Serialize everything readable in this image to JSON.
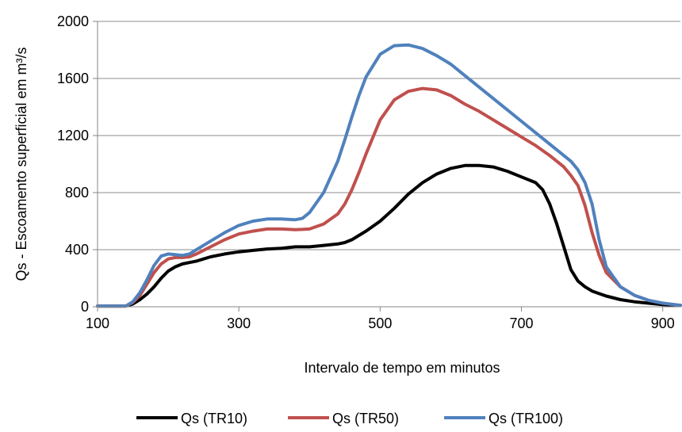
{
  "chart_data": {
    "type": "line",
    "xlabel": "Intervalo de tempo em minutos",
    "ylabel": "Qs - Escoamento superficial em m³/s",
    "xlim": [
      100,
      925
    ],
    "ylim": [
      0,
      2000
    ],
    "x_ticks": [
      100,
      300,
      500,
      700,
      900
    ],
    "y_ticks": [
      0,
      400,
      800,
      1200,
      1600,
      2000
    ],
    "x_tick_labels": [
      "100",
      "300",
      "500",
      "700",
      "900"
    ],
    "y_tick_labels": [
      "0",
      "400",
      "800",
      "1200",
      "1600",
      "2000"
    ],
    "grid": "horizontal",
    "legend": "bottom",
    "series": [
      {
        "name": "Qs (TR10)",
        "color": "#000000",
        "x": [
          100,
          140,
          150,
          160,
          170,
          180,
          190,
          200,
          210,
          220,
          230,
          240,
          260,
          280,
          300,
          320,
          340,
          360,
          380,
          400,
          420,
          440,
          450,
          460,
          470,
          480,
          500,
          520,
          540,
          560,
          580,
          600,
          620,
          640,
          660,
          680,
          700,
          720,
          730,
          740,
          750,
          760,
          770,
          780,
          790,
          800,
          820,
          840,
          860,
          880,
          900,
          925
        ],
        "y": [
          5,
          5,
          20,
          50,
          90,
          140,
          200,
          250,
          280,
          300,
          310,
          320,
          350,
          370,
          385,
          395,
          405,
          410,
          420,
          420,
          430,
          440,
          450,
          470,
          500,
          530,
          600,
          690,
          790,
          870,
          930,
          970,
          990,
          990,
          980,
          950,
          910,
          870,
          820,
          720,
          580,
          420,
          260,
          180,
          140,
          110,
          75,
          50,
          35,
          25,
          15,
          10
        ]
      },
      {
        "name": "Qs (TR50)",
        "color": "#c0504d",
        "x": [
          100,
          140,
          150,
          160,
          170,
          180,
          190,
          200,
          210,
          220,
          230,
          240,
          260,
          280,
          300,
          320,
          340,
          360,
          380,
          400,
          420,
          440,
          450,
          460,
          470,
          480,
          500,
          520,
          540,
          560,
          580,
          600,
          620,
          640,
          660,
          680,
          700,
          720,
          740,
          760,
          770,
          780,
          790,
          800,
          810,
          820,
          840,
          860,
          880,
          900,
          925
        ],
        "y": [
          5,
          5,
          30,
          80,
          160,
          240,
          300,
          335,
          345,
          345,
          350,
          370,
          420,
          470,
          510,
          530,
          545,
          545,
          540,
          545,
          580,
          650,
          720,
          820,
          940,
          1070,
          1310,
          1450,
          1510,
          1530,
          1520,
          1480,
          1420,
          1370,
          1310,
          1250,
          1190,
          1130,
          1060,
          980,
          920,
          850,
          710,
          520,
          360,
          240,
          140,
          80,
          45,
          25,
          10
        ]
      },
      {
        "name": "Qs (TR100)",
        "color": "#4f81bd",
        "x": [
          100,
          140,
          150,
          160,
          170,
          180,
          190,
          200,
          210,
          220,
          230,
          240,
          260,
          280,
          300,
          320,
          340,
          360,
          380,
          390,
          400,
          420,
          440,
          450,
          460,
          470,
          480,
          500,
          520,
          540,
          560,
          580,
          600,
          620,
          640,
          660,
          680,
          700,
          720,
          740,
          760,
          770,
          780,
          790,
          800,
          810,
          820,
          840,
          860,
          880,
          900,
          925
        ],
        "y": [
          5,
          5,
          35,
          100,
          190,
          290,
          355,
          370,
          365,
          360,
          370,
          400,
          460,
          520,
          570,
          600,
          615,
          615,
          610,
          620,
          660,
          800,
          1020,
          1170,
          1330,
          1480,
          1610,
          1770,
          1830,
          1835,
          1810,
          1760,
          1700,
          1620,
          1540,
          1460,
          1380,
          1300,
          1220,
          1140,
          1060,
          1020,
          960,
          870,
          720,
          470,
          280,
          140,
          80,
          45,
          25,
          10
        ]
      }
    ]
  }
}
